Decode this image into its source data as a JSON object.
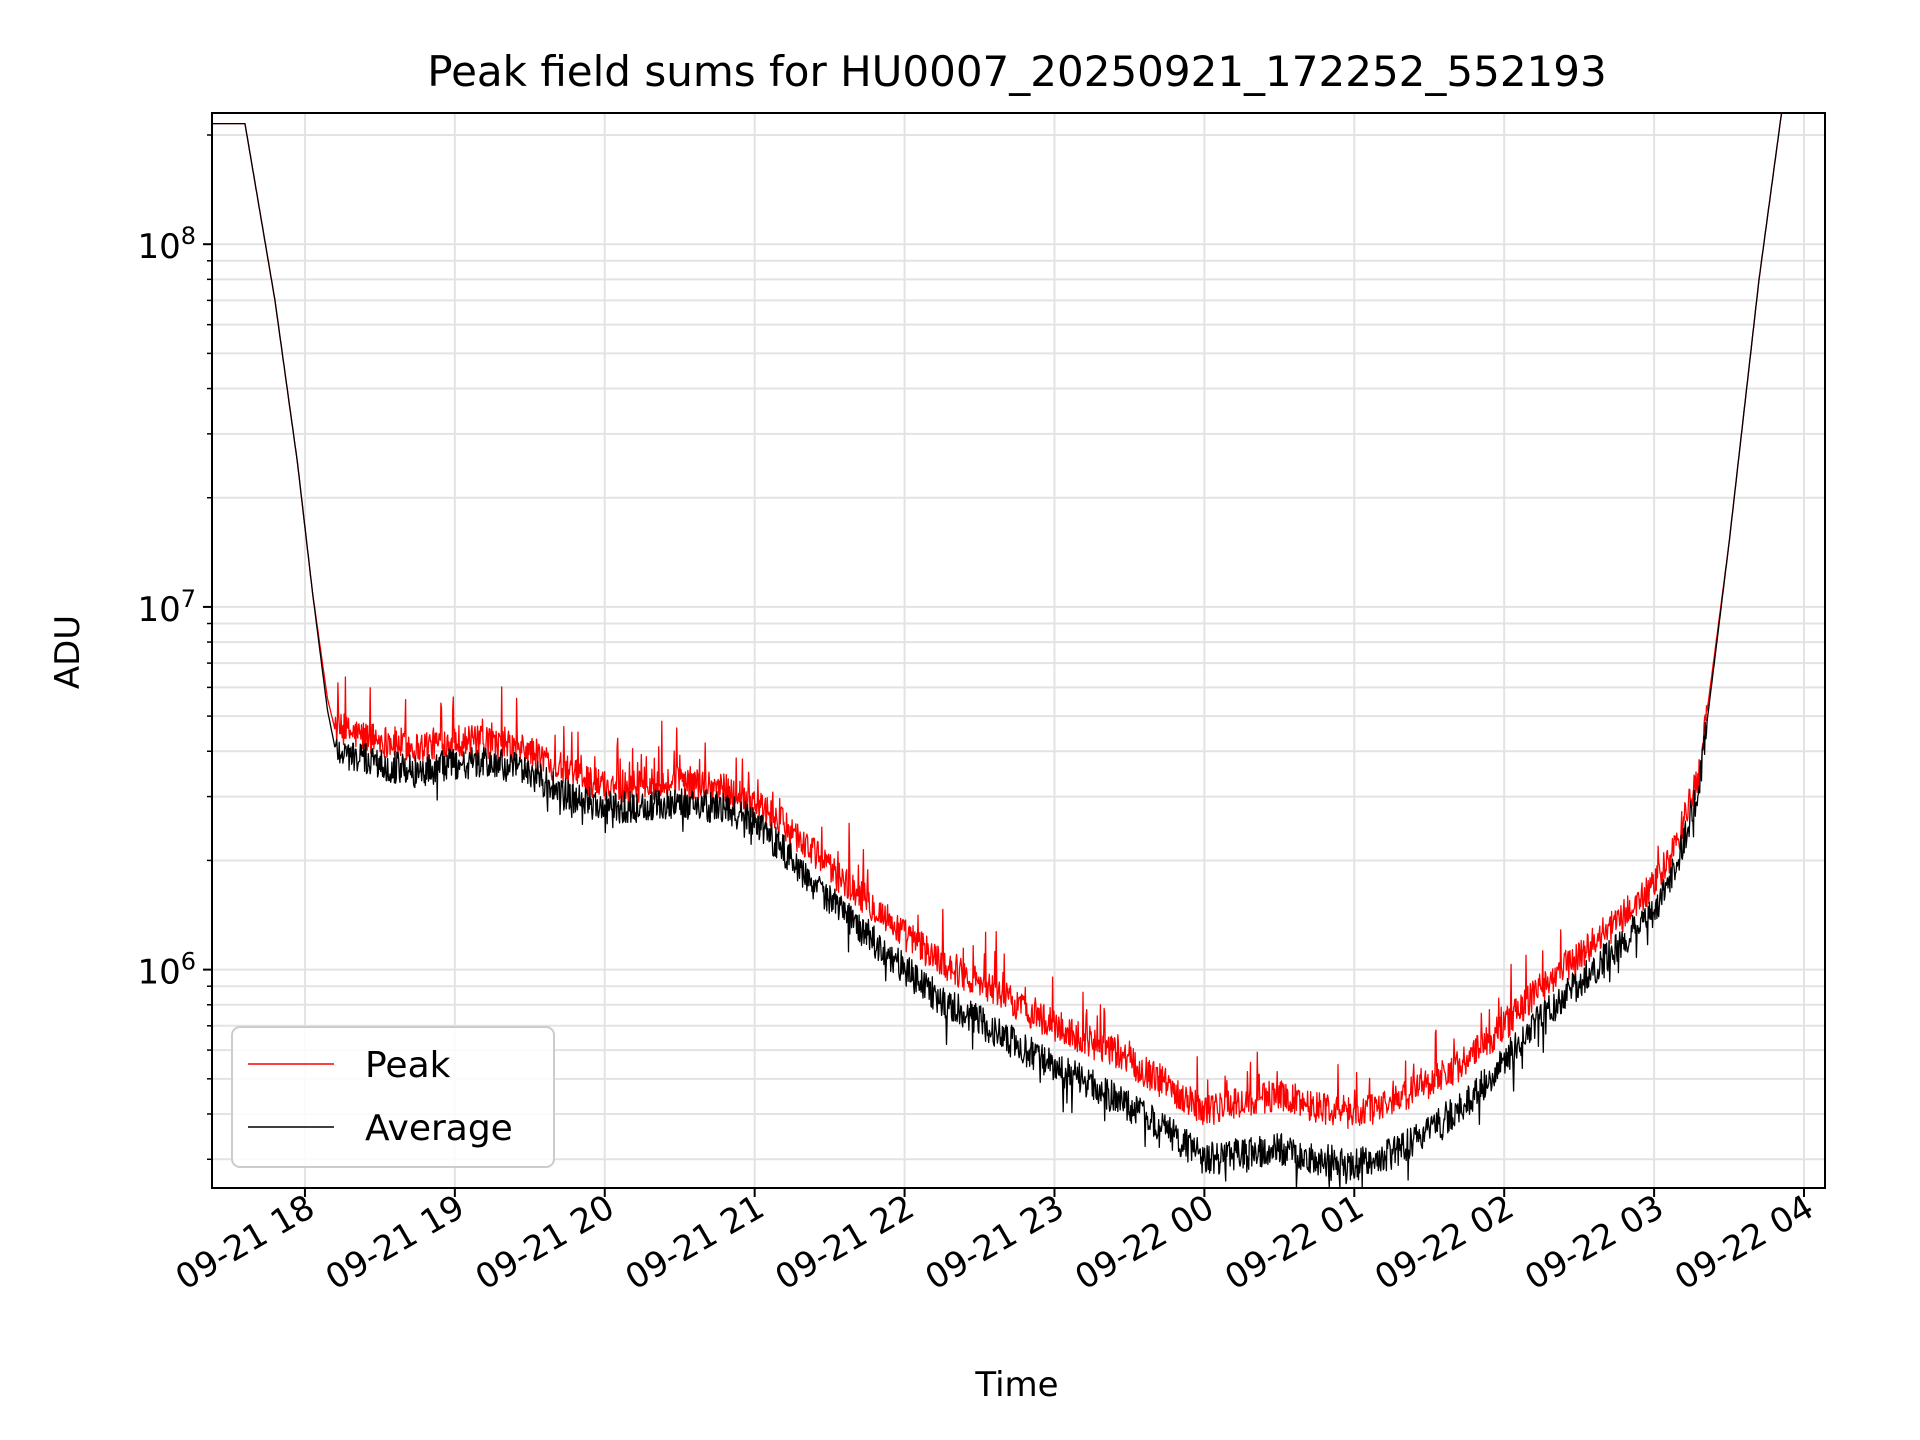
{
  "chart_data": {
    "type": "line",
    "title": "Peak field sums for HU0007_20250921_172252_552193",
    "xlabel": "Time",
    "ylabel": "ADU",
    "yscale": "log",
    "ylim": [
      250000,
      230000000
    ],
    "xlim_hours": [
      17.38,
      28.14
    ],
    "grid": true,
    "legend": {
      "location": "lower-left",
      "entries": [
        {
          "label": "Peak",
          "color": "#ff0000"
        },
        {
          "label": "Average",
          "color": "#000000"
        }
      ]
    },
    "x_ticks": [
      {
        "label": "09-21 18",
        "hour": 18
      },
      {
        "label": "09-21 19",
        "hour": 19
      },
      {
        "label": "09-21 20",
        "hour": 20
      },
      {
        "label": "09-21 21",
        "hour": 21
      },
      {
        "label": "09-21 22",
        "hour": 22
      },
      {
        "label": "09-21 23",
        "hour": 23
      },
      {
        "label": "09-22 00",
        "hour": 24
      },
      {
        "label": "09-22 01",
        "hour": 25
      },
      {
        "label": "09-22 02",
        "hour": 26
      },
      {
        "label": "09-22 03",
        "hour": 27
      },
      {
        "label": "09-22 04",
        "hour": 28
      }
    ],
    "y_ticks": [
      {
        "base": "10",
        "exp": "6",
        "value": 1000000
      },
      {
        "base": "10",
        "exp": "7",
        "value": 10000000
      },
      {
        "base": "10",
        "exp": "8",
        "value": 100000000
      }
    ],
    "series": [
      {
        "name": "Peak",
        "color": "#ff0000",
        "x_hours": [
          17.38,
          17.6,
          17.8,
          17.95,
          18.05,
          18.15,
          18.2,
          18.3,
          18.5,
          18.75,
          19.0,
          19.25,
          19.5,
          19.75,
          20.0,
          20.25,
          20.5,
          20.75,
          21.0,
          21.25,
          21.5,
          21.75,
          22.0,
          22.25,
          22.5,
          22.75,
          23.0,
          23.25,
          23.5,
          23.75,
          24.0,
          24.25,
          24.5,
          24.75,
          25.0,
          25.25,
          25.5,
          25.75,
          26.0,
          26.25,
          26.5,
          26.75,
          27.0,
          27.15,
          27.3,
          27.5,
          27.7,
          27.85,
          28.14
        ],
        "values": [
          215000000,
          215000000,
          70000000,
          25000000,
          11000000,
          5600000,
          4600000,
          4500000,
          4300000,
          4100000,
          4300000,
          4200000,
          4000000,
          3500000,
          3200000,
          3200000,
          3300000,
          3200000,
          2900000,
          2400000,
          1900000,
          1550000,
          1250000,
          1050000,
          920000,
          800000,
          700000,
          630000,
          560000,
          480000,
          410000,
          430000,
          450000,
          420000,
          400000,
          430000,
          490000,
          560000,
          700000,
          900000,
          1100000,
          1350000,
          1700000,
          2200000,
          3500000,
          15000000,
          80000000,
          230000000,
          230000000
        ]
      },
      {
        "name": "Average",
        "color": "#000000",
        "x_hours": [
          17.38,
          17.6,
          17.8,
          17.95,
          18.05,
          18.15,
          18.2,
          18.3,
          18.5,
          18.75,
          19.0,
          19.25,
          19.5,
          19.75,
          20.0,
          20.25,
          20.5,
          20.75,
          21.0,
          21.25,
          21.5,
          21.75,
          22.0,
          22.25,
          22.5,
          22.75,
          23.0,
          23.25,
          23.5,
          23.75,
          24.0,
          24.25,
          24.5,
          24.75,
          25.0,
          25.25,
          25.5,
          25.75,
          26.0,
          26.25,
          26.5,
          26.75,
          27.0,
          27.15,
          27.3,
          27.5,
          27.7,
          27.85,
          28.14
        ],
        "values": [
          215000000,
          215000000,
          70000000,
          25000000,
          11000000,
          5200000,
          4100000,
          3900000,
          3700000,
          3500000,
          3700000,
          3700000,
          3500000,
          3000000,
          2800000,
          2800000,
          2900000,
          2800000,
          2600000,
          2000000,
          1550000,
          1250000,
          1000000,
          820000,
          720000,
          620000,
          540000,
          480000,
          420000,
          360000,
          300000,
          310000,
          320000,
          300000,
          290000,
          310000,
          360000,
          430000,
          560000,
          740000,
          920000,
          1150000,
          1450000,
          1950000,
          3200000,
          15000000,
          80000000,
          230000000,
          230000000
        ]
      }
    ]
  }
}
